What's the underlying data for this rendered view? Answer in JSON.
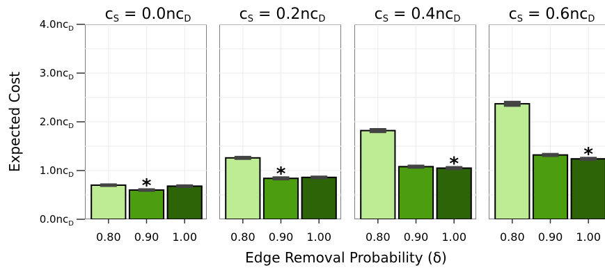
{
  "chart_data": {
    "type": "bar",
    "ylabel": "Expected Cost",
    "xlabel": "Edge Removal Probability (δ)",
    "categories": [
      "0.80",
      "0.90",
      "1.00"
    ],
    "colors": [
      "#bdec94",
      "#4c9d0f",
      "#2d6408"
    ],
    "ylim": [
      0,
      4.0
    ],
    "yticks": [
      {
        "value": 0.0,
        "main": "0.0nc",
        "sub": "D"
      },
      {
        "value": 1.0,
        "main": "1.0nc",
        "sub": "D"
      },
      {
        "value": 2.0,
        "main": "2.0nc",
        "sub": "D"
      },
      {
        "value": 3.0,
        "main": "3.0nc",
        "sub": "D"
      },
      {
        "value": 4.0,
        "main": "4.0nc",
        "sub": "D"
      }
    ],
    "grid": true,
    "panels": [
      {
        "title": {
          "a": "c",
          "b": "S",
          "c": " = 0.0nc",
          "d": "D"
        },
        "values": [
          0.7,
          0.6,
          0.68
        ],
        "errors": [
          0.015,
          0.015,
          0.015
        ],
        "best_marker": "*",
        "best_index": 1
      },
      {
        "title": {
          "a": "c",
          "b": "S",
          "c": " = 0.2nc",
          "d": "D"
        },
        "values": [
          1.26,
          0.84,
          0.86
        ],
        "errors": [
          0.02,
          0.02,
          0.015
        ],
        "best_marker": "*",
        "best_index": 1
      },
      {
        "title": {
          "a": "c",
          "b": "S",
          "c": " = 0.4nc",
          "d": "D"
        },
        "values": [
          1.82,
          1.08,
          1.05
        ],
        "errors": [
          0.03,
          0.02,
          0.02
        ],
        "best_marker": "*",
        "best_index": 2
      },
      {
        "title": {
          "a": "c",
          "b": "S",
          "c": " = 0.6nc",
          "d": "D"
        },
        "values": [
          2.37,
          1.32,
          1.24
        ],
        "errors": [
          0.04,
          0.02,
          0.02
        ],
        "best_marker": "*",
        "best_index": 2
      }
    ]
  }
}
